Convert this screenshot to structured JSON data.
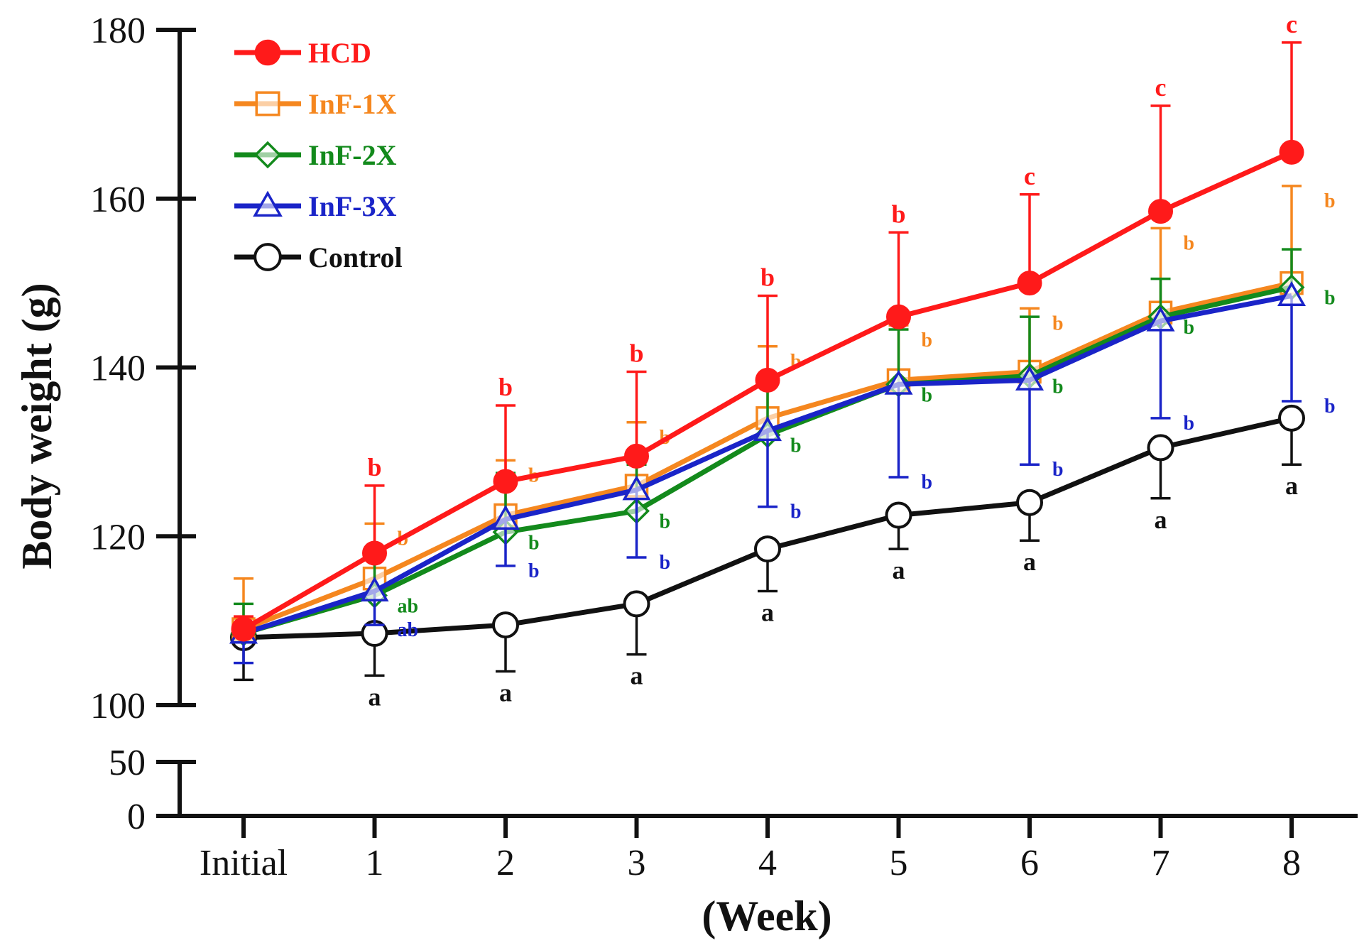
{
  "chart_data": {
    "type": "line",
    "xlabel": "(Week)",
    "ylabel": "Body weight (g)",
    "categories": [
      "Initial",
      "1",
      "2",
      "3",
      "4",
      "5",
      "6",
      "7",
      "8"
    ],
    "yticks": [
      "0",
      "50",
      "100",
      "120",
      "140",
      "160",
      "180"
    ],
    "y_axis_break": {
      "lower_range": [
        0,
        50
      ],
      "upper_range": [
        100,
        180
      ]
    },
    "series": [
      {
        "name": "HCD",
        "color": "#ff1a1a",
        "marker": "filled-circle",
        "label_size": "large",
        "values": [
          109,
          118,
          126.5,
          129.5,
          138.5,
          146,
          150,
          158.5,
          165.5
        ],
        "err_hi": [
          1.5,
          8,
          9,
          10,
          10,
          10,
          10.5,
          12.5,
          13
        ],
        "err_lo": [
          0,
          0,
          0,
          0,
          0,
          0,
          0,
          0,
          0
        ],
        "sig": [
          "",
          "b",
          "b",
          "b",
          "b",
          "b",
          "c",
          "c",
          "c"
        ]
      },
      {
        "name": "InF-1X",
        "color": "#f5871f",
        "marker": "open-square",
        "label_size": "small",
        "values": [
          109,
          115,
          122.5,
          126,
          134,
          138.5,
          139.5,
          146.5,
          150
        ],
        "err_hi": [
          6,
          6.5,
          6.5,
          7.5,
          8.5,
          6.5,
          7.5,
          10,
          11.5
        ],
        "err_lo": [
          0,
          0,
          0,
          0,
          0,
          0,
          0,
          0,
          0
        ],
        "sig": [
          "",
          "b",
          "b",
          "b",
          "b",
          "b",
          "b",
          "b",
          "b"
        ]
      },
      {
        "name": "InF-2X",
        "color": "#138a1c",
        "marker": "open-diamond",
        "label_size": "small",
        "values": [
          108.5,
          113,
          120.5,
          123,
          132,
          138,
          139,
          146,
          149.5
        ],
        "err_hi": [
          3.5,
          4.5,
          7,
          5.5,
          6,
          6.5,
          7,
          4.5,
          4.5
        ],
        "err_lo": [
          0,
          0,
          0,
          0,
          0,
          0,
          0,
          0,
          0
        ],
        "sig": [
          "",
          "ab",
          "b",
          "b",
          "b",
          "b",
          "b",
          "b",
          "b"
        ]
      },
      {
        "name": "InF-3X",
        "color": "#1a24c8",
        "marker": "open-triangle",
        "label_size": "small",
        "values": [
          108.5,
          113.5,
          122,
          125.5,
          132.5,
          138,
          138.5,
          145.5,
          148.5
        ],
        "err_hi": [
          0,
          0,
          0,
          0,
          0,
          0,
          0,
          0,
          0
        ],
        "err_lo": [
          3.5,
          4,
          5.5,
          8,
          9,
          11,
          10,
          11.5,
          12.5
        ],
        "sig": [
          "",
          "ab",
          "b",
          "b",
          "b",
          "b",
          "b",
          "b",
          "b"
        ]
      },
      {
        "name": "Control",
        "color": "#111111",
        "marker": "open-circle",
        "label_size": "large",
        "values": [
          108,
          108.5,
          109.5,
          112,
          118.5,
          122.5,
          124,
          130.5,
          134
        ],
        "err_hi": [
          0,
          0,
          0,
          0,
          0,
          0,
          0,
          0,
          0
        ],
        "err_lo": [
          5,
          5,
          5.5,
          6,
          5,
          4,
          4.5,
          6,
          5.5
        ],
        "sig": [
          "",
          "a",
          "a",
          "a",
          "a",
          "a",
          "a",
          "a",
          "a"
        ]
      }
    ],
    "legend_position": "top-left"
  }
}
